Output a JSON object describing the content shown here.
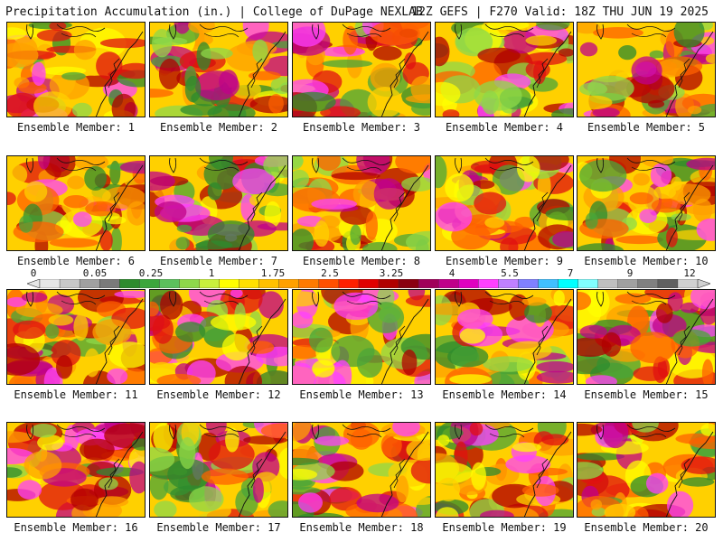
{
  "header": {
    "left_title": "Precipitation Accumulation (in.) | College of DuPage NEXLAB",
    "right_title": "12Z GEFS | F270 Valid: 18Z THU JUN 19 2025"
  },
  "members": [
    "Ensemble Member: 1",
    "Ensemble Member: 2",
    "Ensemble Member: 3",
    "Ensemble Member: 4",
    "Ensemble Member: 5",
    "Ensemble Member: 6",
    "Ensemble Member: 7",
    "Ensemble Member: 8",
    "Ensemble Member: 9",
    "Ensemble Member: 10",
    "Ensemble Member: 11",
    "Ensemble Member: 12",
    "Ensemble Member: 13",
    "Ensemble Member: 14",
    "Ensemble Member: 15",
    "Ensemble Member: 16",
    "Ensemble Member: 17",
    "Ensemble Member: 18",
    "Ensemble Member: 19",
    "Ensemble Member: 20"
  ],
  "colorbar": {
    "labels": [
      "0",
      "0.05",
      "0.25",
      "1",
      "1.75",
      "2.5",
      "3.25",
      "4",
      "5.5",
      "7",
      "9",
      "12"
    ],
    "colors": [
      "#e6e6e6",
      "#c8c8c8",
      "#a0a0a0",
      "#7a7a7a",
      "#2e8b2e",
      "#3ca63c",
      "#5cc05c",
      "#8ed84a",
      "#c8f03c",
      "#ffff00",
      "#ffe000",
      "#ffc000",
      "#ffa000",
      "#ff7a00",
      "#ff5000",
      "#ff2000",
      "#e00000",
      "#b00000",
      "#8a0010",
      "#a0005a",
      "#c0008a",
      "#e000c0",
      "#ff40ff",
      "#c080ff",
      "#8080ff",
      "#40c0ff",
      "#00ffff",
      "#80ffff",
      "#c0c0c0",
      "#a0a0a0",
      "#808080",
      "#606060",
      "#d0d0d0"
    ]
  }
}
